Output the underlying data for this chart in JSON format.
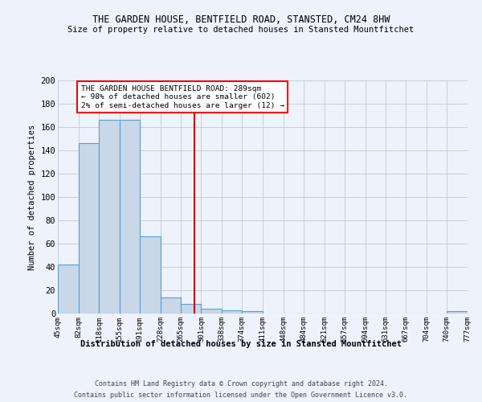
{
  "title": "THE GARDEN HOUSE, BENTFIELD ROAD, STANSTED, CM24 8HW",
  "subtitle": "Size of property relative to detached houses in Stansted Mountfitchet",
  "xlabel": "Distribution of detached houses by size in Stansted Mountfitchet",
  "ylabel": "Number of detached properties",
  "footer1": "Contains HM Land Registry data © Crown copyright and database right 2024.",
  "footer2": "Contains public sector information licensed under the Open Government Licence v3.0.",
  "annotation_line1": "THE GARDEN HOUSE BENTFIELD ROAD: 289sqm",
  "annotation_line2": "← 98% of detached houses are smaller (602)",
  "annotation_line3": "2% of semi-detached houses are larger (12) →",
  "subject_value": 289,
  "bar_edges": [
    45,
    82,
    118,
    155,
    191,
    228,
    265,
    301,
    338,
    374,
    411,
    448,
    484,
    521,
    557,
    594,
    631,
    667,
    704,
    740,
    777
  ],
  "bar_heights": [
    42,
    146,
    166,
    166,
    66,
    14,
    8,
    4,
    3,
    2,
    0,
    0,
    0,
    0,
    0,
    0,
    0,
    0,
    0,
    2
  ],
  "bar_color": "#c8d8e8",
  "bar_edge_color": "#5b9bd5",
  "ref_line_color": "#cc0000",
  "background_color": "#eef2fb",
  "grid_color": "#c0c8d8",
  "ylim": [
    0,
    200
  ],
  "yticks": [
    0,
    20,
    40,
    60,
    80,
    100,
    120,
    140,
    160,
    180,
    200
  ]
}
